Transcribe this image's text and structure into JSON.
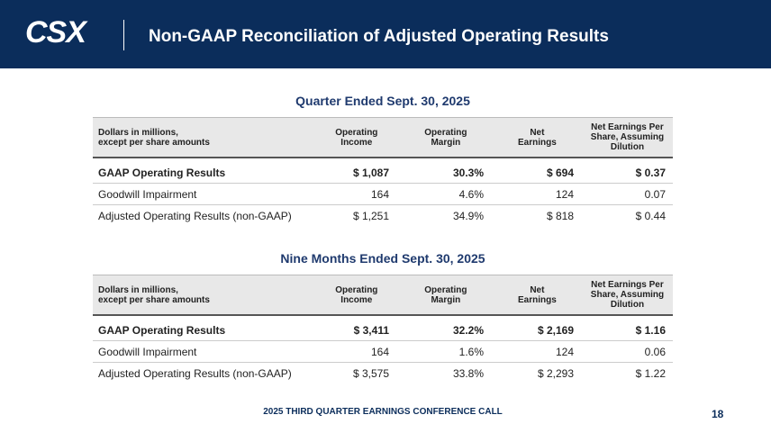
{
  "header": {
    "logo": "CSX",
    "title": "Non-GAAP Reconciliation of Adjusted Operating Results"
  },
  "tables": [
    {
      "title": "Quarter Ended Sept. 30, 2025",
      "columns": [
        "Dollars in millions,\nexcept per share amounts",
        "Operating\nIncome",
        "Operating\nMargin",
        "Net\nEarnings",
        "Net Earnings Per\nShare, Assuming\nDilution"
      ],
      "rows": [
        [
          "GAAP Operating Results",
          "$ 1,087",
          "30.3%",
          "$ 694",
          "$ 0.37"
        ],
        [
          "Goodwill Impairment",
          "164",
          "4.6%",
          "124",
          "0.07"
        ],
        [
          "Adjusted Operating Results (non-GAAP)",
          "$ 1,251",
          "34.9%",
          "$ 818",
          "$ 0.44"
        ]
      ]
    },
    {
      "title": "Nine Months Ended Sept. 30, 2025",
      "columns": [
        "Dollars in millions,\nexcept per share amounts",
        "Operating\nIncome",
        "Operating\nMargin",
        "Net\nEarnings",
        "Net Earnings Per\nShare, Assuming\nDilution"
      ],
      "rows": [
        [
          "GAAP Operating Results",
          "$ 3,411",
          "32.2%",
          "$ 2,169",
          "$ 1.16"
        ],
        [
          "Goodwill Impairment",
          "164",
          "1.6%",
          "124",
          "0.06"
        ],
        [
          "Adjusted Operating Results (non-GAAP)",
          "$ 3,575",
          "33.8%",
          "$ 2,293",
          "$ 1.22"
        ]
      ]
    }
  ],
  "footer": {
    "text": "2025 THIRD QUARTER EARNINGS CONFERENCE CALL",
    "page": "18"
  }
}
